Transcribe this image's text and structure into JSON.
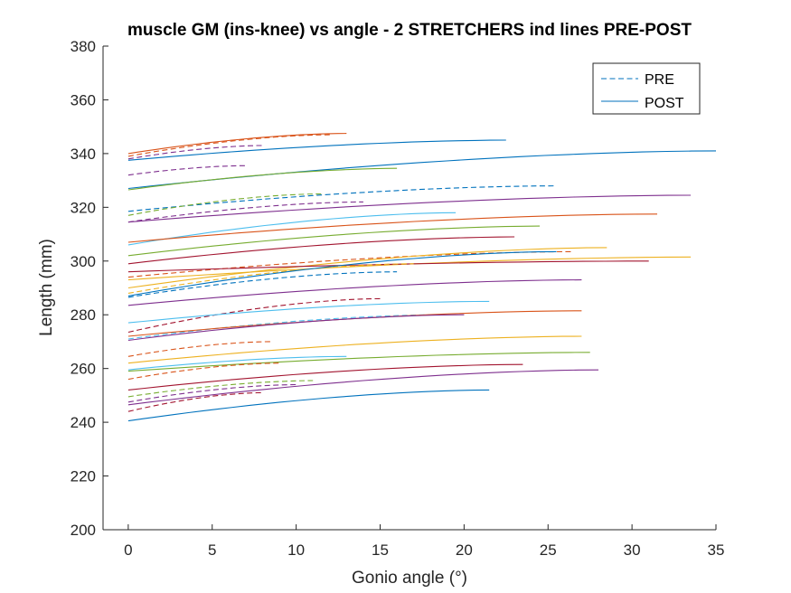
{
  "chart_data": {
    "type": "line",
    "title": "muscle GM (ins-knee) vs angle - 2 STRETCHERS ind lines PRE-POST",
    "xlabel": "Gonio angle (°)",
    "ylabel": "Length (mm)",
    "xlim": [
      -1.5,
      35
    ],
    "ylim": [
      200,
      380
    ],
    "xticks": [
      "0",
      "5",
      "10",
      "15",
      "20",
      "25",
      "30",
      "35"
    ],
    "yticks": [
      "200",
      "220",
      "240",
      "260",
      "280",
      "300",
      "320",
      "340",
      "360",
      "380"
    ],
    "grid": false,
    "legend": {
      "placement": "top-right",
      "entries": [
        {
          "label": "PRE",
          "style": "dashed",
          "color": "#0072BD"
        },
        {
          "label": "POST",
          "style": "solid",
          "color": "#0072BD"
        }
      ]
    },
    "series": [
      {
        "style": "solid",
        "color": "#D95319",
        "x": [
          0,
          13
        ],
        "y": [
          340,
          347.5
        ]
      },
      {
        "style": "dashed",
        "color": "#D95319",
        "x": [
          0,
          12
        ],
        "y": [
          339,
          347
        ]
      },
      {
        "style": "solid",
        "color": "#0072BD",
        "x": [
          0,
          22.5
        ],
        "y": [
          337.5,
          345
        ]
      },
      {
        "style": "dashed",
        "color": "#7E2F8E",
        "x": [
          0,
          8
        ],
        "y": [
          338,
          343
        ]
      },
      {
        "style": "dashed",
        "color": "#7E2F8E",
        "x": [
          0,
          7
        ],
        "y": [
          332,
          335.5
        ]
      },
      {
        "style": "solid",
        "color": "#0072BD",
        "x": [
          0,
          35
        ],
        "y": [
          327,
          341
        ]
      },
      {
        "style": "solid",
        "color": "#77AC30",
        "x": [
          0,
          16
        ],
        "y": [
          326.5,
          334.5
        ]
      },
      {
        "style": "dashed",
        "color": "#0072BD",
        "x": [
          0,
          25.5
        ],
        "y": [
          318.5,
          328
        ]
      },
      {
        "style": "dashed",
        "color": "#77AC30",
        "x": [
          0,
          11.5
        ],
        "y": [
          317,
          325
        ]
      },
      {
        "style": "dashed",
        "color": "#7E2F8E",
        "x": [
          0,
          14
        ],
        "y": [
          314.5,
          322
        ]
      },
      {
        "style": "solid",
        "color": "#7E2F8E",
        "x": [
          0,
          33.5
        ],
        "y": [
          314.5,
          324.5
        ]
      },
      {
        "style": "solid",
        "color": "#4DBEEE",
        "x": [
          0,
          19.5
        ],
        "y": [
          306,
          318
        ]
      },
      {
        "style": "solid",
        "color": "#D95319",
        "x": [
          0,
          31.5
        ],
        "y": [
          307,
          317.5
        ]
      },
      {
        "style": "solid",
        "color": "#77AC30",
        "x": [
          0,
          24.5
        ],
        "y": [
          302,
          313
        ]
      },
      {
        "style": "solid",
        "color": "#A2142F",
        "x": [
          0,
          23
        ],
        "y": [
          299,
          309
        ]
      },
      {
        "style": "dashed",
        "color": "#D95319",
        "x": [
          0,
          26.5
        ],
        "y": [
          294,
          303.5
        ]
      },
      {
        "style": "solid",
        "color": "#EDB120",
        "x": [
          0,
          28.5
        ],
        "y": [
          290,
          305
        ]
      },
      {
        "style": "solid",
        "color": "#EDB120",
        "x": [
          0,
          33.5
        ],
        "y": [
          293,
          301.5
        ]
      },
      {
        "style": "solid",
        "color": "#A2142F",
        "x": [
          0,
          31
        ],
        "y": [
          296,
          300
        ]
      },
      {
        "style": "dashed",
        "color": "#EDB120",
        "x": [
          0,
          17
        ],
        "y": [
          288,
          299
        ]
      },
      {
        "style": "solid",
        "color": "#0072BD",
        "x": [
          0,
          25.5
        ],
        "y": [
          287,
          303.5
        ]
      },
      {
        "style": "dashed",
        "color": "#0072BD",
        "x": [
          0,
          16
        ],
        "y": [
          286.5,
          296
        ]
      },
      {
        "style": "solid",
        "color": "#7E2F8E",
        "x": [
          0,
          27
        ],
        "y": [
          283.5,
          293
        ]
      },
      {
        "style": "dashed",
        "color": "#A2142F",
        "x": [
          0,
          15
        ],
        "y": [
          273.5,
          286
        ]
      },
      {
        "style": "solid",
        "color": "#4DBEEE",
        "x": [
          0,
          21.5
        ],
        "y": [
          277,
          285
        ]
      },
      {
        "style": "dashed",
        "color": "#4DBEEE",
        "x": [
          0,
          18.5
        ],
        "y": [
          271,
          280
        ]
      },
      {
        "style": "solid",
        "color": "#D95319",
        "x": [
          0,
          27
        ],
        "y": [
          272,
          281.5
        ]
      },
      {
        "style": "solid",
        "color": "#7E2F8E",
        "x": [
          0,
          20
        ],
        "y": [
          270.5,
          280
        ]
      },
      {
        "style": "dashed",
        "color": "#D95319",
        "x": [
          0,
          8.5
        ],
        "y": [
          264.5,
          270
        ]
      },
      {
        "style": "solid",
        "color": "#EDB120",
        "x": [
          0,
          27
        ],
        "y": [
          262,
          272
        ]
      },
      {
        "style": "solid",
        "color": "#77AC30",
        "x": [
          0,
          27.5
        ],
        "y": [
          259,
          266
        ]
      },
      {
        "style": "solid",
        "color": "#4DBEEE",
        "x": [
          0,
          13
        ],
        "y": [
          259.5,
          264.5
        ]
      },
      {
        "style": "dashed",
        "color": "#D95319",
        "x": [
          0,
          9
        ],
        "y": [
          256,
          262
        ]
      },
      {
        "style": "solid",
        "color": "#A2142F",
        "x": [
          0,
          23.5
        ],
        "y": [
          252,
          261.5
        ]
      },
      {
        "style": "solid",
        "color": "#7E2F8E",
        "x": [
          0,
          28
        ],
        "y": [
          246.5,
          259.5
        ]
      },
      {
        "style": "dashed",
        "color": "#77AC30",
        "x": [
          0,
          11
        ],
        "y": [
          249.5,
          255.5
        ]
      },
      {
        "style": "dashed",
        "color": "#7E2F8E",
        "x": [
          0,
          10
        ],
        "y": [
          247.5,
          254
        ]
      },
      {
        "style": "dashed",
        "color": "#A2142F",
        "x": [
          0,
          8
        ],
        "y": [
          244,
          251
        ]
      },
      {
        "style": "solid",
        "color": "#0072BD",
        "x": [
          0,
          21.5
        ],
        "y": [
          240.5,
          252
        ]
      }
    ]
  }
}
